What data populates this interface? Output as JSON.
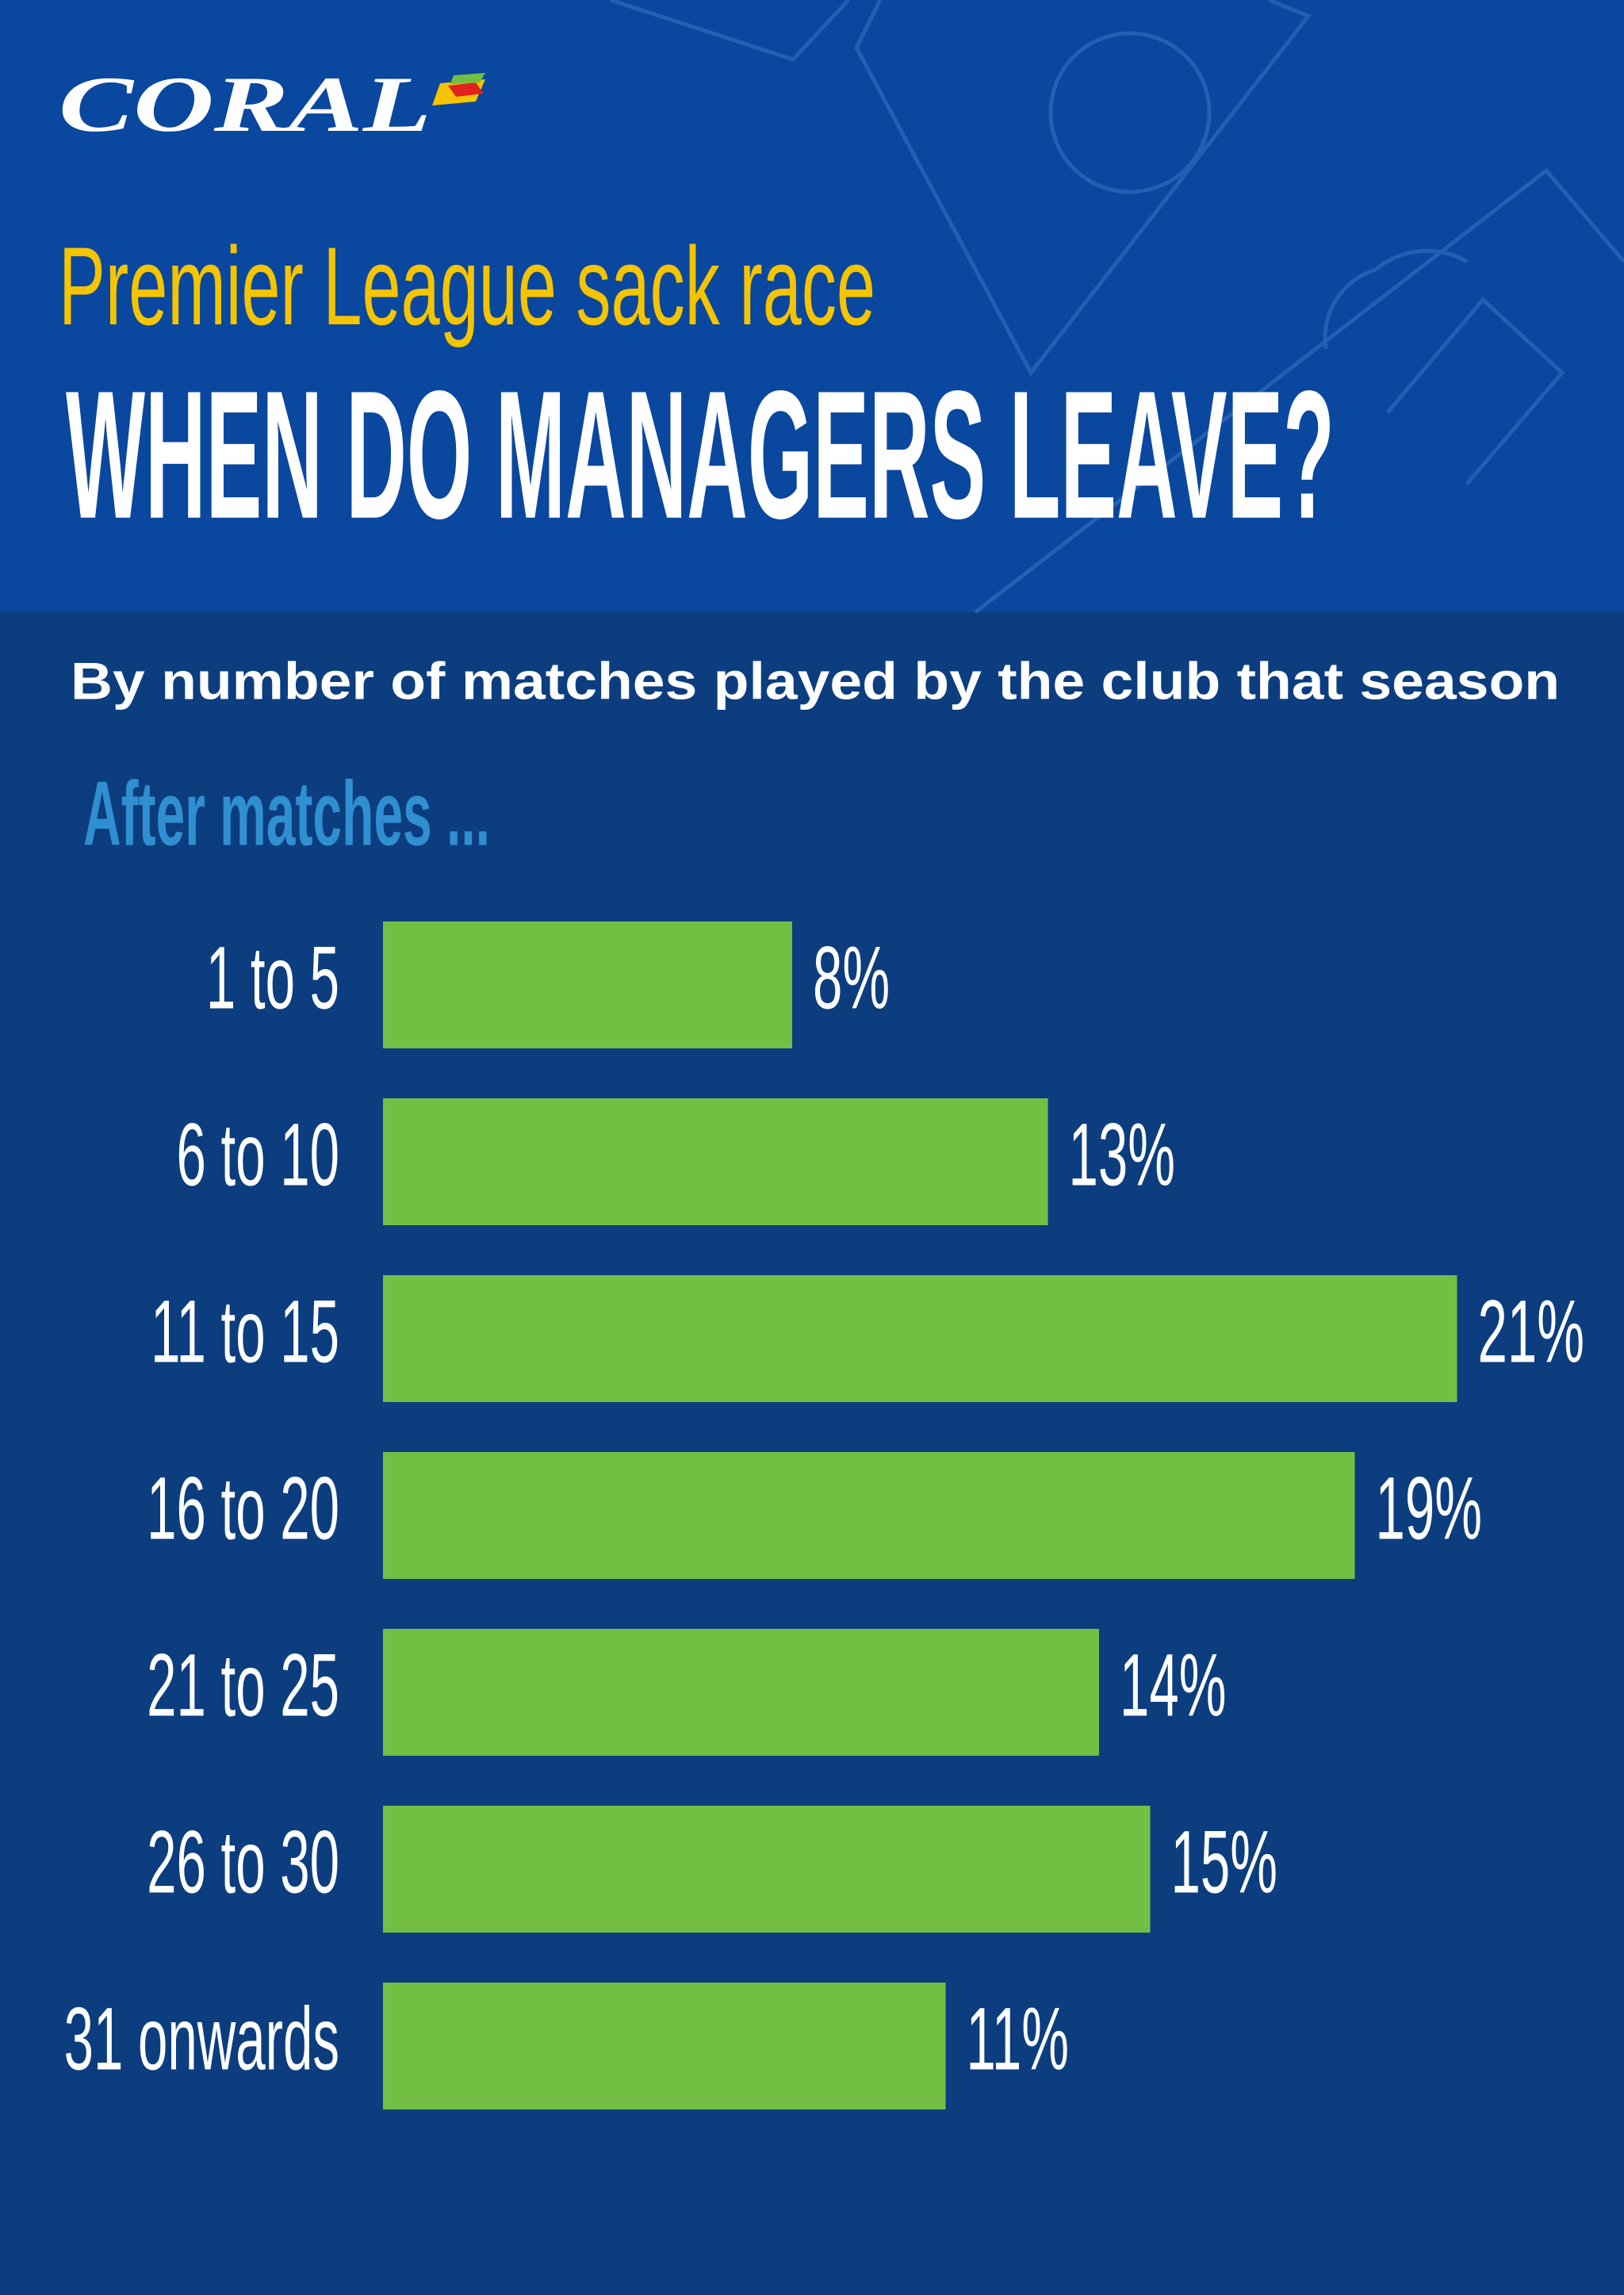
{
  "brand": "CORAL",
  "chart_data": {
    "type": "bar",
    "orientation": "horizontal",
    "title": "Premier League sack race",
    "heading": "WHEN DO MANAGERS LEAVE?",
    "subtitle": "By number of matches played by the club that season",
    "y_label": "After matches ...",
    "categories": [
      "1 to 5",
      "6 to 10",
      "11 to 15",
      "16 to 20",
      "21 to 25",
      "26 to 30",
      "31 onwards"
    ],
    "values": [
      8,
      13,
      21,
      19,
      14,
      15,
      11
    ],
    "value_labels": [
      "8%",
      "13%",
      "21%",
      "19%",
      "14%",
      "15%",
      "11%"
    ],
    "color": "#72bf44"
  }
}
